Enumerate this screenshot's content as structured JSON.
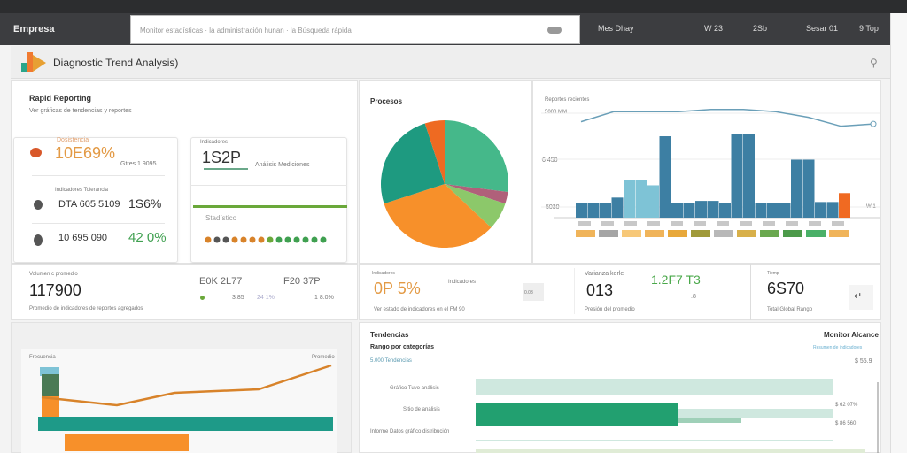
{
  "app": {
    "brand": "Empresa",
    "search_placeholder": "Monitor estadísticas · la administración hunan · la Búsqueda rápida",
    "nav": [
      "Mes Dhay",
      "W 23",
      "2Sb",
      "Sesar 01",
      "9 Top"
    ],
    "title": "Diagnostic Trend Analysis)"
  },
  "reporting": {
    "title": "Rapid Reporting",
    "subtitle": "Ver gráficas de tendencias y reportes",
    "card1": {
      "label": "Dosistencia",
      "value": "10E69%",
      "note": "Gtres 1 9095",
      "row2_label": "Indicadores Tolerancia",
      "row2_text": "DTA 605 5109",
      "row2_value": "1S6%",
      "row3_text": "10 695 090",
      "row3_value": "42 0%"
    },
    "card2": {
      "label": "Indicadores",
      "value": "1S2P",
      "note": "Análisis Mediciones",
      "sub": "Stadístico"
    }
  },
  "pie": {
    "title": "Procesos"
  },
  "barchart": {
    "label": "Reportes recientes",
    "tick_top": "5000 MM",
    "tick_mid": "6 450",
    "tick_low": "5030",
    "tick_right": "W 1"
  },
  "chart_data": {
    "type": "bar",
    "title": "",
    "xlabel": "",
    "ylabel": "",
    "ylim": [
      0,
      100
    ],
    "values": [
      13,
      13,
      13,
      18,
      34,
      34,
      29,
      73,
      13,
      13,
      15,
      15,
      13,
      75,
      75,
      13,
      13,
      13,
      52,
      52,
      14,
      14,
      22
    ],
    "line": [
      86,
      95,
      95,
      95,
      97,
      97,
      95,
      90,
      82,
      84
    ],
    "colors": {
      "bar": "#3d7fa3",
      "light": "#7ec3d6",
      "highlight": "#f06a22",
      "line": "#6a9fb8"
    },
    "legend_colors": [
      "#f0b45a",
      "#a5a5a5",
      "#f7c878",
      "#f0b45a",
      "#e8a83a",
      "#a09a3a",
      "#b8b8b8",
      "#d8b04a",
      "#6aa84f",
      "#4c9a4a",
      "#4ab068",
      "#f0b45a"
    ]
  },
  "kpis": [
    {
      "label": "Volumen c promedio",
      "value": "117900",
      "note": "Promedio de indicadores de reportes agregados"
    },
    {
      "value": "E0K 2L77",
      "value2": "F20 37P",
      "sub1": "3.85",
      "sub2": "24 1%",
      "sub3": "1 8.0%"
    },
    {
      "label": "Indicadores",
      "value": "0P 5%",
      "extra": "Indicadores",
      "badge": "0.03",
      "note": "Ver estado de indicadores en el FM 90"
    },
    {
      "label": "Varianza kerle",
      "value": "013",
      "value_green": "1.2F7 T3",
      "sub": ".8",
      "note": "Presión del promedio"
    },
    {
      "label": "Tiemp",
      "value": "6S70",
      "note": "Total Global Rango"
    }
  ],
  "trend": {
    "left_label": "Frecuencia",
    "right_label": "Promedio"
  },
  "hbars": {
    "title": "Tendencias",
    "subtitle": "Rango por categorías",
    "sub2": "5.000 Tendencias",
    "right_title": "Monitor Alcance",
    "right_sub": "Resumen de indicadores",
    "right_value": "$ 55.9",
    "rows": [
      {
        "label": "Gráfico Tuvo análisis",
        "value": ""
      },
      {
        "label": "Sitio de análisis",
        "value": "$ 62 07%"
      },
      {
        "label": "Informe Datos gráfico distribución",
        "value": "$ 86 560"
      }
    ]
  }
}
